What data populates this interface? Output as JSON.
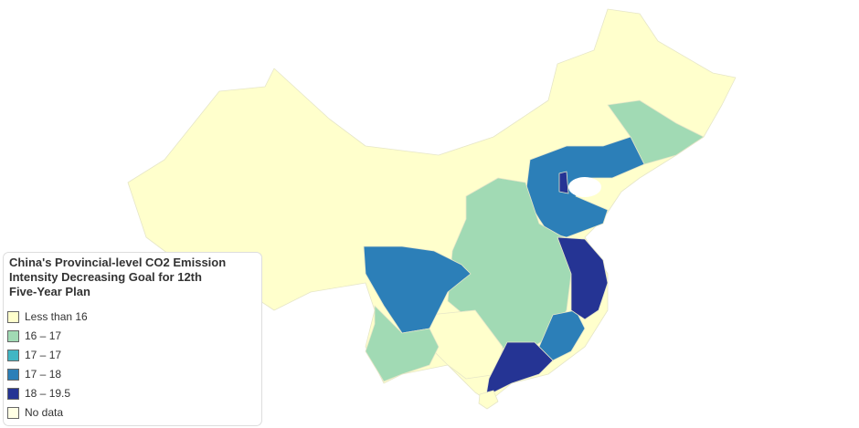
{
  "legend": {
    "title": [
      "China's Provincial-level CO2 Emission",
      "Intensity Decreasing Goal for 12th",
      "Five-Year Plan"
    ],
    "items": [
      {
        "label": "Less than 16",
        "color": "#ffffcc"
      },
      {
        "label": "16 – 17",
        "color": "#a1dab4"
      },
      {
        "label": "17 – 17",
        "color": "#41b6c4"
      },
      {
        "label": "17 – 18",
        "color": "#2c7fb8"
      },
      {
        "label": "18 – 19.5",
        "color": "#253494"
      },
      {
        "label": "No data",
        "color": "#ffffe5"
      }
    ]
  }
}
